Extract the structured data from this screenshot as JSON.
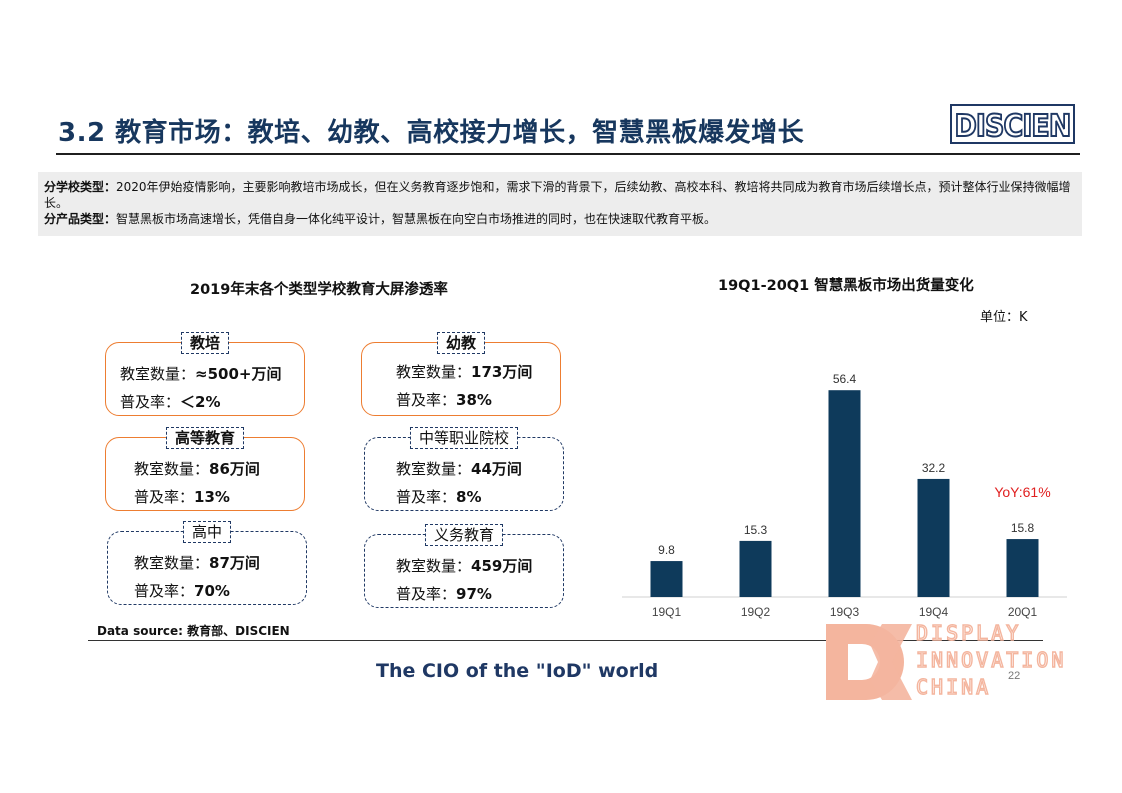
{
  "header": {
    "title": "3.2 教育市场：教培、幼教、高校接力增长，智慧黑板爆发增长",
    "logo_text": "DISCIEN"
  },
  "summary": {
    "line1_label": "分学校类型：",
    "line1_text": "2020年伊始疫情影响，主要影响教培市场成长，但在义务教育逐步饱和，需求下滑的背景下，后续幼教、高校本科、教培将共同成为教育市场后续增长点，预计整体行业保持微幅增长。",
    "line2_label": "分产品类型：",
    "line2_text": "智慧黑板市场高速增长，凭借自身一体化纯平设计，智慧黑板在向空白市场推进的同时，也在快速取代教育平板。"
  },
  "left_panel": {
    "title": "2019年末各个类型学校教育大屏渗透率",
    "cards": [
      {
        "name": "教培",
        "rooms_label": "教室数量：",
        "rooms": "≈500+万间",
        "rate_label": "普及率：",
        "rate": "＜2%"
      },
      {
        "name": "幼教",
        "rooms_label": "教室数量：",
        "rooms": "173万间",
        "rate_label": "普及率：",
        "rate": "38%"
      },
      {
        "name": "高等教育",
        "rooms_label": "教室数量：",
        "rooms": "86万间",
        "rate_label": "普及率：",
        "rate": "13%"
      },
      {
        "name": "中等职业院校",
        "rooms_label": "教室数量：",
        "rooms": "44万间",
        "rate_label": "普及率：",
        "rate": "8%"
      },
      {
        "name": "高中",
        "rooms_label": "教室数量：",
        "rooms": "87万间",
        "rate_label": "普及率：",
        "rate": "70%"
      },
      {
        "name": "义务教育",
        "rooms_label": "教室数量：",
        "rooms": "459万间",
        "rate_label": "普及率：",
        "rate": "97%"
      }
    ],
    "source": "Data source: 教育部、DISCIEN"
  },
  "chart_data": {
    "type": "bar",
    "title": "19Q1-20Q1 智慧黑板市场出货量变化",
    "unit": "单位：K",
    "categories": [
      "19Q1",
      "19Q2",
      "19Q3",
      "19Q4",
      "20Q1"
    ],
    "values": [
      9.8,
      15.3,
      56.4,
      32.2,
      15.8
    ],
    "annotation": "YoY:61%",
    "bar_color": "#0e3a5b",
    "annotation_color": "#e02020",
    "ylim": [
      0,
      60
    ]
  },
  "footer": {
    "tagline": "The CIO of the \"IoD\" world",
    "watermark_lines": [
      "DISPLAY",
      "INNOVATION",
      "CHINA"
    ],
    "page_number": "22"
  }
}
